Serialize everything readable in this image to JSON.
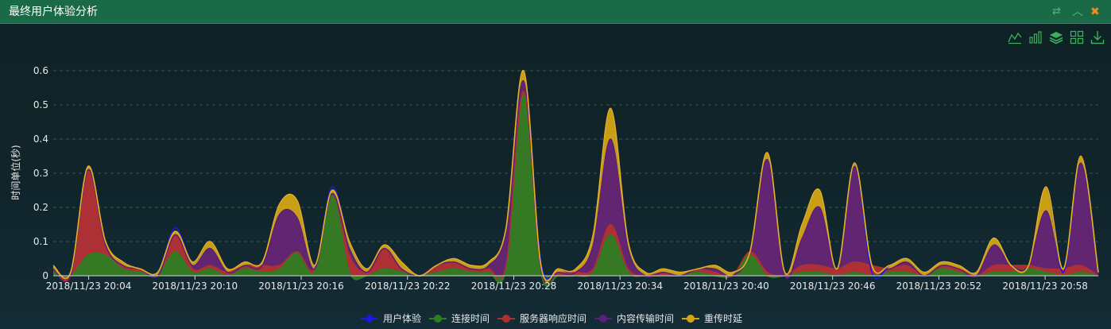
{
  "window": {
    "title": "最终用户体验分析",
    "icons": [
      "swap-icon",
      "collapse-up-icon",
      "close-icon"
    ],
    "accent": "#1b6a47"
  },
  "toolbox": [
    "line-chart-icon",
    "bar-chart-icon",
    "stack-icon",
    "tiled-icon",
    "download-icon"
  ],
  "chart_data": {
    "type": "area",
    "ylabel": "时间单位(秒)",
    "ylim": [
      0,
      0.6
    ],
    "yticks": [
      "0",
      "0.1",
      "0.2",
      "0.3",
      "0.4",
      "0.5",
      "0.6"
    ],
    "grid": "horizontal dashed",
    "legend_position": "bottom-center",
    "x_tick_labels": [
      "2018/11/23 20:04",
      "2018/11/23 20:10",
      "2018/11/23 20:16",
      "2018/11/23 20:22",
      "2018/11/23 20:28",
      "2018/11/23 20:34",
      "2018/11/23 20:40",
      "2018/11/23 20:46",
      "2018/11/23 20:52",
      "2018/11/23 20:58"
    ],
    "x_start": "2018/11/23 20:02",
    "x_end": "2018/11/23 21:01",
    "series": [
      {
        "name": "用户体验",
        "color": "#1a1ad8",
        "values": [
          0.03,
          0.01,
          0.32,
          0.1,
          0.04,
          0.02,
          0.01,
          0.14,
          0.04,
          0.1,
          0.02,
          0.04,
          0.04,
          0.21,
          0.22,
          0.03,
          0.26,
          0.1,
          0.02,
          0.09,
          0.04,
          0.0,
          0.03,
          0.05,
          0.03,
          0.04,
          0.14,
          0.6,
          0.04,
          0.02,
          0.02,
          0.12,
          0.49,
          0.1,
          0.01,
          0.02,
          0.01,
          0.02,
          0.03,
          0.01,
          0.07,
          0.36,
          0.01,
          0.15,
          0.25,
          0.02,
          0.33,
          0.01,
          0.03,
          0.05,
          0.01,
          0.04,
          0.03,
          0.01,
          0.11,
          0.03,
          0.03,
          0.26,
          0.01,
          0.35,
          0.01
        ]
      },
      {
        "name": "连接时间",
        "color": "#2e7d24",
        "values": [
          0.01,
          0.0,
          0.06,
          0.06,
          0.02,
          0.01,
          0.0,
          0.07,
          0.01,
          0.02,
          0.0,
          0.02,
          0.01,
          0.02,
          0.07,
          0.01,
          0.24,
          0.01,
          0.0,
          0.02,
          0.01,
          0.0,
          0.01,
          0.02,
          0.01,
          0.01,
          0.02,
          0.53,
          0.01,
          0.0,
          0.0,
          0.01,
          0.12,
          0.01,
          0.0,
          0.0,
          0.0,
          0.01,
          0.0,
          0.0,
          0.06,
          0.0,
          0.0,
          0.01,
          0.01,
          0.0,
          0.01,
          0.0,
          0.01,
          0.01,
          0.0,
          0.02,
          0.01,
          0.0,
          0.01,
          0.01,
          0.02,
          0.01,
          0.0,
          0.01,
          0.0
        ]
      },
      {
        "name": "服务器响应时间",
        "color": "#b03030",
        "values": [
          0.01,
          0.0,
          0.25,
          0.03,
          0.01,
          0.01,
          0.0,
          0.05,
          0.01,
          0.01,
          0.01,
          0.01,
          0.02,
          0.01,
          0.0,
          0.01,
          0.0,
          0.05,
          0.01,
          0.06,
          0.01,
          0.0,
          0.02,
          0.02,
          0.01,
          0.01,
          0.01,
          0.01,
          0.01,
          0.01,
          0.01,
          0.01,
          0.03,
          0.01,
          0.0,
          0.01,
          0.0,
          0.01,
          0.01,
          0.0,
          0.01,
          0.01,
          0.0,
          0.02,
          0.02,
          0.02,
          0.03,
          0.03,
          0.01,
          0.02,
          0.0,
          0.01,
          0.01,
          0.0,
          0.02,
          0.02,
          0.01,
          0.01,
          0.02,
          0.02,
          0.0
        ]
      },
      {
        "name": "内容传输时间",
        "color": "#5c1f77",
        "values": [
          0.0,
          0.0,
          0.0,
          0.0,
          0.0,
          0.0,
          0.0,
          0.0,
          0.01,
          0.05,
          0.0,
          0.0,
          0.0,
          0.15,
          0.1,
          0.0,
          0.0,
          0.02,
          0.0,
          0.0,
          0.0,
          0.0,
          0.0,
          0.0,
          0.0,
          0.01,
          0.1,
          0.03,
          0.0,
          0.0,
          0.0,
          0.07,
          0.25,
          0.06,
          0.0,
          0.0,
          0.0,
          0.0,
          0.01,
          0.0,
          0.0,
          0.33,
          0.0,
          0.08,
          0.17,
          0.0,
          0.28,
          0.0,
          0.0,
          0.01,
          0.0,
          0.0,
          0.0,
          0.0,
          0.06,
          0.0,
          0.0,
          0.17,
          0.0,
          0.3,
          0.0
        ]
      },
      {
        "name": "重传时延",
        "color": "#d4a514",
        "values": [
          0.01,
          0.01,
          0.01,
          0.01,
          0.01,
          0.0,
          0.01,
          0.01,
          0.01,
          0.02,
          0.01,
          0.01,
          0.01,
          0.03,
          0.05,
          0.01,
          0.01,
          0.02,
          0.01,
          0.01,
          0.02,
          0.0,
          0.0,
          0.01,
          0.01,
          0.01,
          0.01,
          0.03,
          0.01,
          0.01,
          0.01,
          0.03,
          0.09,
          0.02,
          0.01,
          0.01,
          0.01,
          0.0,
          0.01,
          0.01,
          0.0,
          0.02,
          0.01,
          0.04,
          0.05,
          0.0,
          0.01,
          0.0,
          0.01,
          0.01,
          0.01,
          0.01,
          0.01,
          0.01,
          0.02,
          0.0,
          0.0,
          0.07,
          0.0,
          0.02,
          0.01
        ]
      }
    ]
  }
}
